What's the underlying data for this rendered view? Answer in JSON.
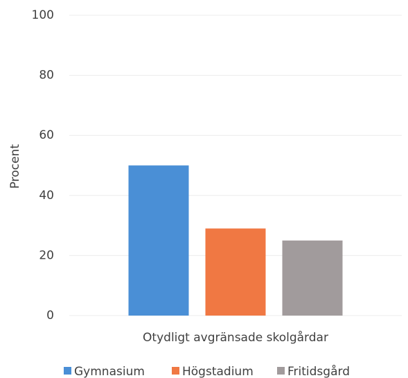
{
  "chart_data": {
    "type": "bar",
    "y_label": "Procent",
    "categories": [
      "Otydligt avgränsade skolgårdar"
    ],
    "series": [
      {
        "name": "Gymnasium",
        "color": "#4a8fd6",
        "values": [
          50
        ]
      },
      {
        "name": "Högstadium",
        "color": "#f07843",
        "values": [
          29
        ]
      },
      {
        "name": "Fritidsgård",
        "color": "#a19b9c",
        "values": [
          25
        ]
      }
    ],
    "ylim": [
      0,
      100
    ],
    "yticks": [
      0,
      20,
      40,
      60,
      80,
      100
    ],
    "grid": true,
    "legend": "bottom"
  }
}
